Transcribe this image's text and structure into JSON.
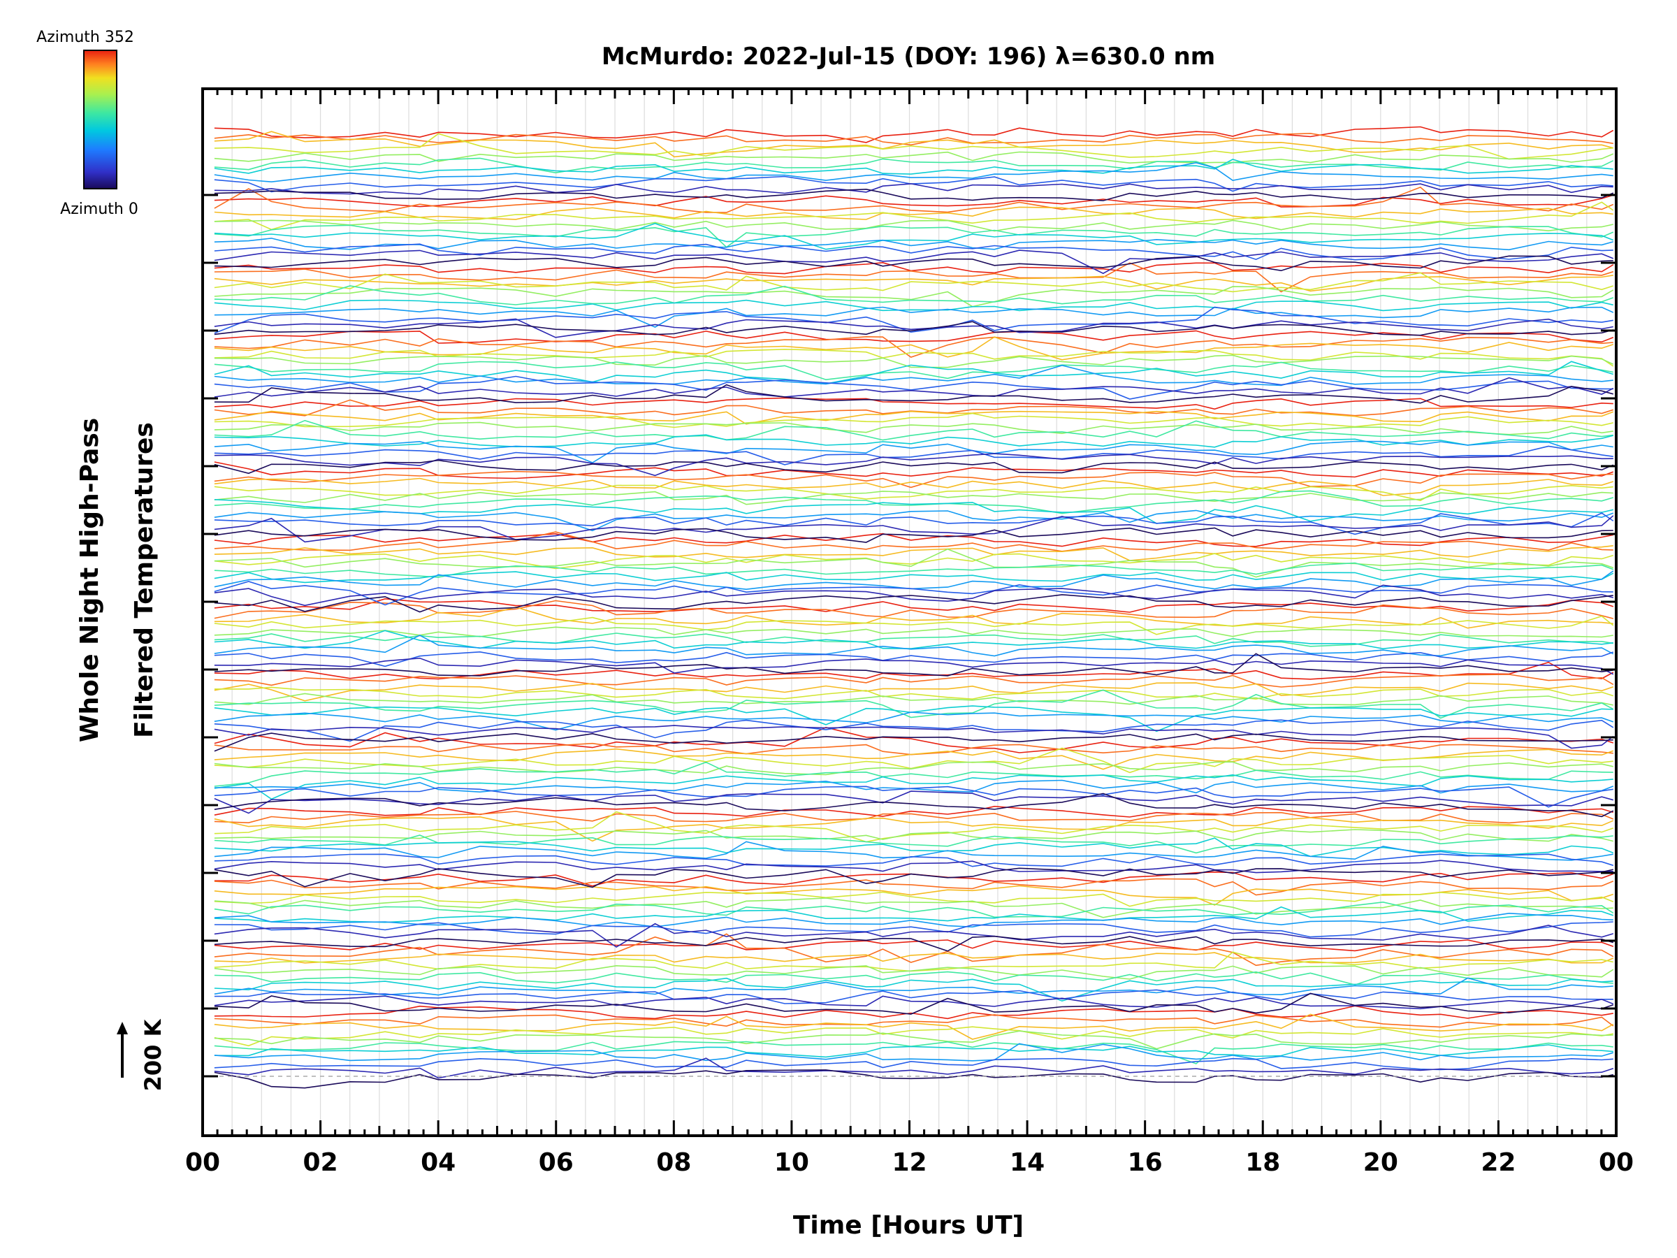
{
  "chart_data": {
    "type": "line",
    "title": "McMurdo: 2022-Jul-15 (DOY: 196) λ=630.0 nm",
    "xlabel": "Time [Hours UT]",
    "ylabel_line1": "Whole Night High-Pass",
    "ylabel_line2": "Filtered Temperatures",
    "x_tick_labels": [
      "00",
      "02",
      "04",
      "06",
      "08",
      "10",
      "12",
      "14",
      "16",
      "18",
      "20",
      "22",
      "00"
    ],
    "xlim": [
      0,
      24
    ],
    "colorbar": {
      "top_label": "Azimuth 352",
      "bottom_label": "Azimuth 0",
      "colormap": "rainbow",
      "colors": [
        "#1a0a5a",
        "#3030c8",
        "#1e7bff",
        "#00c8e0",
        "#3fe8a0",
        "#a8f050",
        "#f0e020",
        "#ff8020",
        "#e82010"
      ]
    },
    "scale_bar": {
      "label": "200 K"
    },
    "grid": "vertical",
    "series_groups": 14,
    "series_per_group": 11,
    "note_values": "Stacked, offset high-pass filtered temperature traces; individual values not labeled"
  }
}
